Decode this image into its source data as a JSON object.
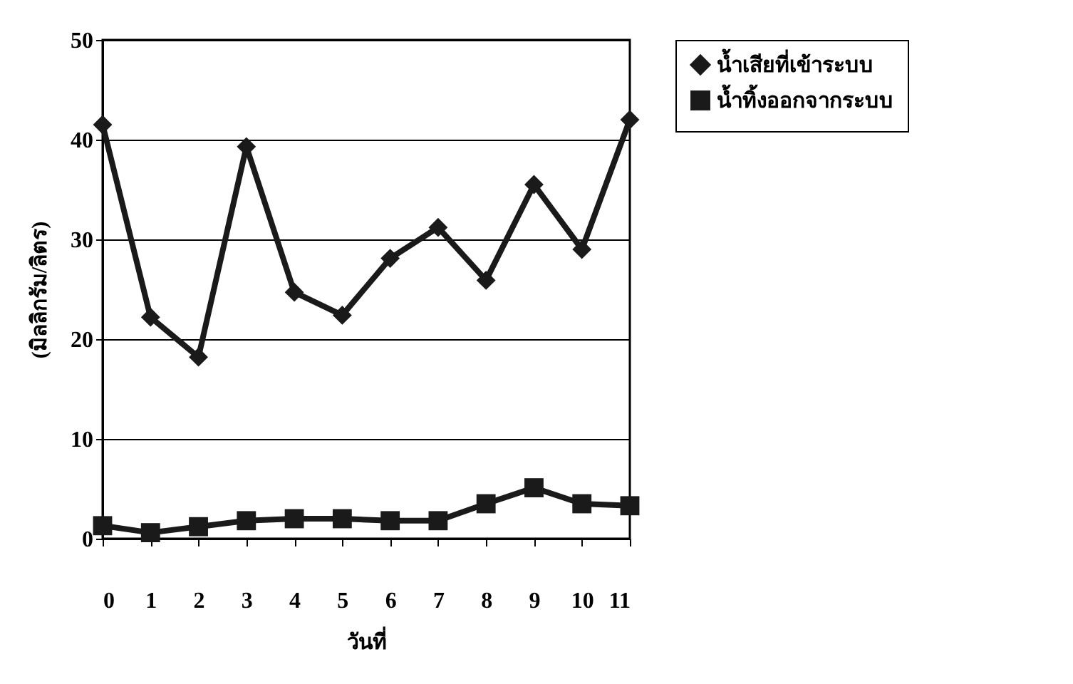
{
  "chart_data": {
    "type": "line",
    "xlabel": "วันที่",
    "ylabel": "(มิลลิกรัม/ลิตร)",
    "x": [
      0,
      1,
      2,
      3,
      4,
      5,
      6,
      7,
      8,
      9,
      10,
      11
    ],
    "xlim": [
      0,
      11
    ],
    "xticks": [
      0,
      1,
      2,
      3,
      4,
      5,
      6,
      7,
      8,
      9,
      10,
      11
    ],
    "ylim": [
      0,
      50
    ],
    "yticks": [
      0,
      10,
      20,
      30,
      40,
      50
    ],
    "grid": "y",
    "legend": "right",
    "series": [
      {
        "name": "น้ำเสียที่เข้าระบบ",
        "color": "#1a1a1a",
        "marker": "diamond",
        "values": [
          41.5,
          22.2,
          18.2,
          39.3,
          24.7,
          22.4,
          28.1,
          31.2,
          25.9,
          35.5,
          29.0,
          42.0
        ]
      },
      {
        "name": "น้ำทิ้งออกจากระบบ",
        "color": "#1a1a1a",
        "marker": "square",
        "values": [
          1.3,
          0.6,
          1.2,
          1.8,
          2.0,
          2.0,
          1.8,
          1.8,
          3.5,
          5.1,
          3.5,
          3.3
        ]
      }
    ]
  }
}
